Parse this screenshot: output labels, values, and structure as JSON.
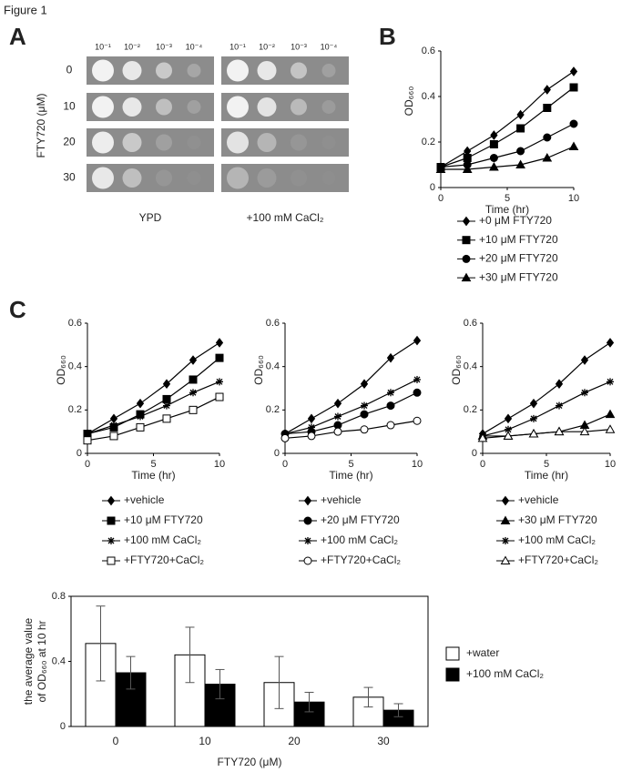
{
  "figure_title": "Figure 1",
  "panel_labels": [
    "A",
    "B",
    "C"
  ],
  "spot_assay": {
    "ylabel": "FTY720 (μM)",
    "rows": [
      "0",
      "10",
      "20",
      "30"
    ],
    "dilutions": [
      "10⁻¹",
      "10⁻²",
      "10⁻³",
      "10⁻⁴"
    ],
    "plates": [
      "YPD",
      "+100 mM CaCl₂"
    ]
  },
  "chart_data": [
    {
      "type": "line",
      "xlabel": "Time (hr)",
      "ylabel": "OD₆₆₀",
      "x": [
        0,
        2,
        4,
        6,
        8,
        10
      ],
      "xlim": [
        0,
        10
      ],
      "xticks": [
        0,
        5,
        10
      ],
      "ylim": [
        0,
        0.6
      ],
      "yticks": [
        0,
        0.2,
        0.4,
        0.6
      ],
      "series": [
        {
          "name": "+0 μM FTY720",
          "color": "#000000",
          "marker": "diamond",
          "values": [
            0.09,
            0.16,
            0.23,
            0.32,
            0.43,
            0.51
          ]
        },
        {
          "name": "+10 μM FTY720",
          "color": "#000000",
          "marker": "square",
          "values": [
            0.09,
            0.13,
            0.19,
            0.26,
            0.35,
            0.44
          ]
        },
        {
          "name": "+20 μM FTY720",
          "color": "#000000",
          "marker": "circle",
          "values": [
            0.09,
            0.1,
            0.13,
            0.16,
            0.22,
            0.28
          ]
        },
        {
          "name": "+30 μM FTY720",
          "color": "#000000",
          "marker": "triangle",
          "values": [
            0.08,
            0.08,
            0.09,
            0.1,
            0.13,
            0.18
          ]
        }
      ]
    },
    {
      "type": "line",
      "xlabel": "Time (hr)",
      "ylabel": "OD₆₆₀",
      "x": [
        0,
        2,
        4,
        6,
        8,
        10
      ],
      "xlim": [
        0,
        10
      ],
      "xticks": [
        0,
        5,
        10
      ],
      "ylim": [
        0,
        0.6
      ],
      "yticks": [
        0,
        0.2,
        0.4,
        0.6
      ],
      "series": [
        {
          "name": "+vehicle",
          "color": "#000000",
          "marker": "diamond",
          "values": [
            0.09,
            0.16,
            0.23,
            0.32,
            0.43,
            0.51
          ]
        },
        {
          "name": "+10 μM FTY720",
          "color": "#000000",
          "marker": "square",
          "values": [
            0.09,
            0.12,
            0.18,
            0.25,
            0.34,
            0.44
          ]
        },
        {
          "name": "+100 mM CaCl₂",
          "color": "#000000",
          "marker": "asterisk",
          "values": [
            0.09,
            0.13,
            0.17,
            0.22,
            0.28,
            0.33
          ]
        },
        {
          "name": "+FTY720+CaCl₂",
          "color": "#000000",
          "marker": "open-square",
          "values": [
            0.06,
            0.08,
            0.12,
            0.16,
            0.2,
            0.26
          ]
        }
      ]
    },
    {
      "type": "line",
      "xlabel": "Time (hr)",
      "ylabel": "OD₆₆₀",
      "x": [
        0,
        2,
        4,
        6,
        8,
        10
      ],
      "xlim": [
        0,
        10
      ],
      "xticks": [
        0,
        5,
        10
      ],
      "ylim": [
        0,
        0.6
      ],
      "yticks": [
        0,
        0.2,
        0.4,
        0.6
      ],
      "series": [
        {
          "name": "+vehicle",
          "color": "#000000",
          "marker": "diamond",
          "values": [
            0.09,
            0.16,
            0.23,
            0.32,
            0.44,
            0.52
          ]
        },
        {
          "name": "+20 μM FTY720",
          "color": "#000000",
          "marker": "circle",
          "values": [
            0.09,
            0.1,
            0.13,
            0.18,
            0.22,
            0.28
          ]
        },
        {
          "name": "+100 mM CaCl₂",
          "color": "#000000",
          "marker": "asterisk",
          "values": [
            0.09,
            0.12,
            0.17,
            0.22,
            0.28,
            0.34
          ]
        },
        {
          "name": "+FTY720+CaCl₂",
          "color": "#000000",
          "marker": "open-circle",
          "values": [
            0.07,
            0.08,
            0.1,
            0.11,
            0.13,
            0.15
          ]
        }
      ]
    },
    {
      "type": "line",
      "xlabel": "Time (hr)",
      "ylabel": "OD₆₆₀",
      "x": [
        0,
        2,
        4,
        6,
        8,
        10
      ],
      "xlim": [
        0,
        10
      ],
      "xticks": [
        0,
        5,
        10
      ],
      "ylim": [
        0,
        0.6
      ],
      "yticks": [
        0,
        0.2,
        0.4,
        0.6
      ],
      "series": [
        {
          "name": "+vehicle",
          "color": "#000000",
          "marker": "diamond",
          "values": [
            0.09,
            0.16,
            0.23,
            0.32,
            0.43,
            0.51
          ]
        },
        {
          "name": "+30 μM FTY720",
          "color": "#000000",
          "marker": "triangle",
          "values": [
            0.08,
            0.08,
            0.09,
            0.1,
            0.13,
            0.18
          ]
        },
        {
          "name": "+100 mM CaCl₂",
          "color": "#000000",
          "marker": "asterisk",
          "values": [
            0.08,
            0.11,
            0.16,
            0.22,
            0.28,
            0.33
          ]
        },
        {
          "name": "+FTY720+CaCl₂",
          "color": "#000000",
          "marker": "open-triangle",
          "values": [
            0.07,
            0.08,
            0.09,
            0.1,
            0.1,
            0.11
          ]
        }
      ]
    },
    {
      "type": "bar",
      "xlabel": "FTY720 (μM)",
      "ylabel": [
        "the average value",
        "of OD₆₆₀ at 10 hr"
      ],
      "categories": [
        "0",
        "10",
        "20",
        "30"
      ],
      "ylim": [
        0,
        0.8
      ],
      "yticks": [
        0,
        0.4,
        0.8
      ],
      "series": [
        {
          "name": "+water",
          "color": "#ffffff",
          "values": [
            0.51,
            0.44,
            0.27,
            0.18
          ],
          "errors": [
            0.23,
            0.17,
            0.16,
            0.06
          ]
        },
        {
          "name": "+100 mM CaCl₂",
          "color": "#000000",
          "values": [
            0.33,
            0.26,
            0.15,
            0.1
          ],
          "errors": [
            0.1,
            0.09,
            0.06,
            0.04
          ]
        }
      ]
    }
  ]
}
